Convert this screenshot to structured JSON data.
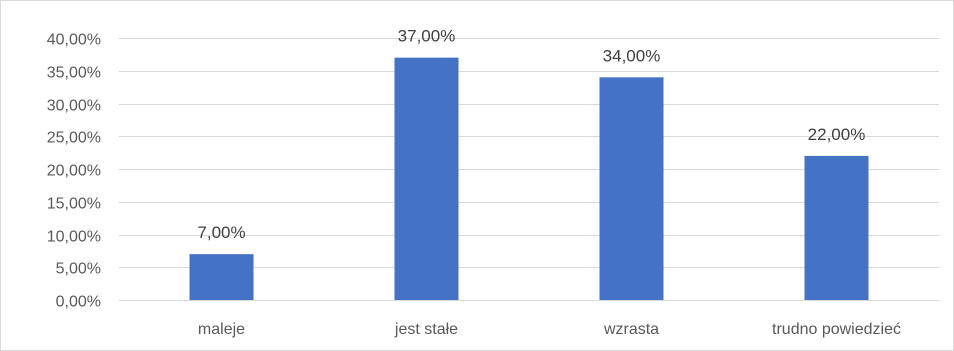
{
  "chart_data": {
    "type": "bar",
    "title": "",
    "xlabel": "",
    "ylabel": "",
    "categories": [
      "maleje",
      "jest stałe",
      "wzrasta",
      "trudno powiedzieć"
    ],
    "values": [
      7.0,
      37.0,
      34.0,
      22.0
    ],
    "value_labels": [
      "7,00%",
      "37,00%",
      "34,00%",
      "22,00%"
    ],
    "ylim": [
      0,
      40
    ],
    "yticks": [
      0,
      5,
      10,
      15,
      20,
      25,
      30,
      35,
      40
    ],
    "ytick_labels": [
      "0,00%",
      "5,00%",
      "10,00%",
      "15,00%",
      "20,00%",
      "25,00%",
      "30,00%",
      "35,00%",
      "40,00%"
    ],
    "grid": true,
    "legend": "none",
    "bar_color": "#4472c4",
    "grid_color": "#d9d9d9"
  }
}
